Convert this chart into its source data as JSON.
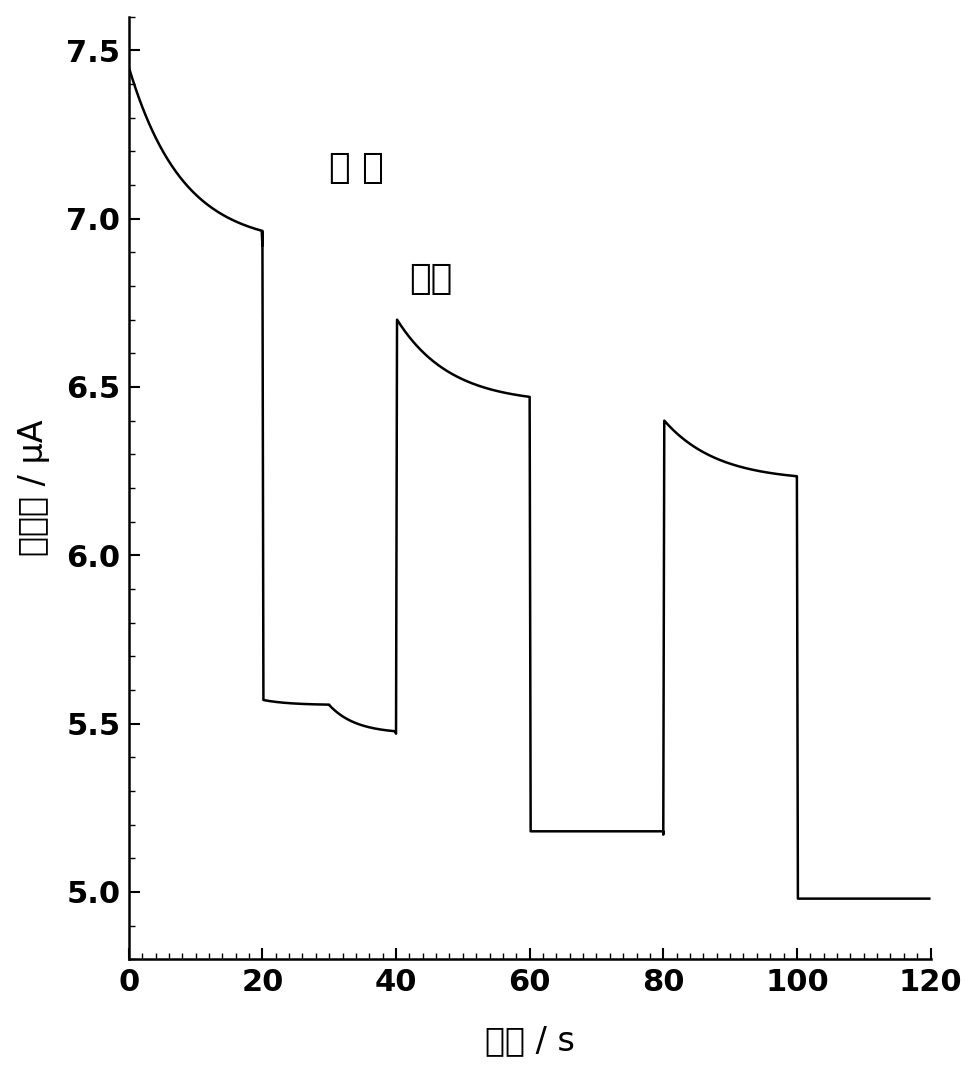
{
  "xlim": [
    0,
    120
  ],
  "ylim": [
    4.8,
    7.6
  ],
  "xticks_major": [
    0,
    20,
    40,
    60,
    80,
    100,
    120
  ],
  "yticks_major": [
    5.0,
    5.5,
    6.0,
    6.5,
    7.0,
    7.5
  ],
  "xlabel": "时间 / s",
  "ylabel": "光电流 / μA",
  "label_avoid": "避 光",
  "label_light": "光照",
  "line_color": "#000000",
  "bg_color": "#ffffff",
  "axis_label_fontsize": 24,
  "tick_fontsize": 22,
  "annotation_fontsize": 26,
  "minor_tick_interval": 2
}
